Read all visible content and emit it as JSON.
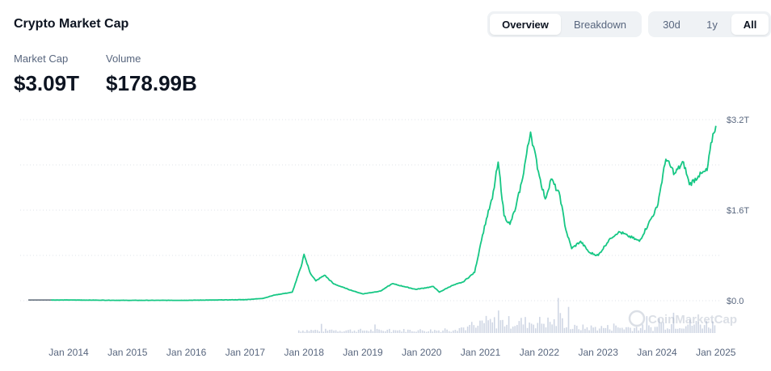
{
  "header": {
    "title": "Crypto Market Cap"
  },
  "view_tabs": [
    {
      "label": "Overview",
      "active": true
    },
    {
      "label": "Breakdown",
      "active": false
    }
  ],
  "range_tabs": [
    {
      "label": "30d",
      "active": false
    },
    {
      "label": "1y",
      "active": false
    },
    {
      "label": "All",
      "active": true
    }
  ],
  "stats": {
    "market_cap_label": "Market Cap",
    "market_cap_value": "$3.09T",
    "volume_label": "Volume",
    "volume_value": "$178.99B"
  },
  "watermark": "CoinMarketCap",
  "colors": {
    "line": "#16c784",
    "volume": "#cfd6e4",
    "grid": "#dfe3ea",
    "axis_text": "#58667e"
  },
  "chart_data": {
    "type": "line",
    "title": "",
    "xlabel": "",
    "ylabel": "",
    "x_ticks": [
      "Jan 2014",
      "Jan 2015",
      "Jan 2016",
      "Jan 2017",
      "Jan 2018",
      "Jan 2019",
      "Jan 2020",
      "Jan 2021",
      "Jan 2022",
      "Jan 2023",
      "Jan 2024",
      "Jan 2025"
    ],
    "y_ticks": [
      "$0.0",
      "$1.6T",
      "$3.2T"
    ],
    "ylim": [
      0,
      3.2
    ],
    "y_unit": "T USD",
    "grid": true,
    "series": [
      {
        "values": [
          [
            2013.7,
            0.012
          ],
          [
            2014.0,
            0.012
          ],
          [
            2014.5,
            0.009
          ],
          [
            2015.0,
            0.006
          ],
          [
            2016.0,
            0.007
          ],
          [
            2016.5,
            0.012
          ],
          [
            2017.0,
            0.018
          ],
          [
            2017.3,
            0.04
          ],
          [
            2017.5,
            0.1
          ],
          [
            2017.8,
            0.15
          ],
          [
            2017.95,
            0.6
          ],
          [
            2018.0,
            0.82
          ],
          [
            2018.1,
            0.5
          ],
          [
            2018.2,
            0.35
          ],
          [
            2018.35,
            0.45
          ],
          [
            2018.5,
            0.3
          ],
          [
            2018.7,
            0.22
          ],
          [
            2018.9,
            0.15
          ],
          [
            2019.0,
            0.12
          ],
          [
            2019.3,
            0.17
          ],
          [
            2019.5,
            0.3
          ],
          [
            2019.7,
            0.25
          ],
          [
            2019.9,
            0.2
          ],
          [
            2020.2,
            0.25
          ],
          [
            2020.3,
            0.15
          ],
          [
            2020.5,
            0.26
          ],
          [
            2020.7,
            0.33
          ],
          [
            2020.9,
            0.5
          ],
          [
            2021.0,
            1.0
          ],
          [
            2021.1,
            1.45
          ],
          [
            2021.2,
            1.8
          ],
          [
            2021.3,
            2.45
          ],
          [
            2021.4,
            1.5
          ],
          [
            2021.5,
            1.35
          ],
          [
            2021.6,
            1.65
          ],
          [
            2021.7,
            2.1
          ],
          [
            2021.85,
            2.98
          ],
          [
            2022.0,
            2.2
          ],
          [
            2022.1,
            1.8
          ],
          [
            2022.2,
            2.15
          ],
          [
            2022.35,
            1.85
          ],
          [
            2022.45,
            1.25
          ],
          [
            2022.55,
            0.92
          ],
          [
            2022.7,
            1.05
          ],
          [
            2022.85,
            0.85
          ],
          [
            2023.0,
            0.8
          ],
          [
            2023.2,
            1.1
          ],
          [
            2023.35,
            1.22
          ],
          [
            2023.5,
            1.15
          ],
          [
            2023.7,
            1.05
          ],
          [
            2023.85,
            1.35
          ],
          [
            2024.0,
            1.65
          ],
          [
            2024.15,
            2.5
          ],
          [
            2024.3,
            2.25
          ],
          [
            2024.45,
            2.45
          ],
          [
            2024.55,
            2.05
          ],
          [
            2024.7,
            2.2
          ],
          [
            2024.85,
            2.3
          ],
          [
            2024.95,
            2.95
          ],
          [
            2025.0,
            3.09
          ]
        ]
      }
    ],
    "volume_bars": true
  }
}
